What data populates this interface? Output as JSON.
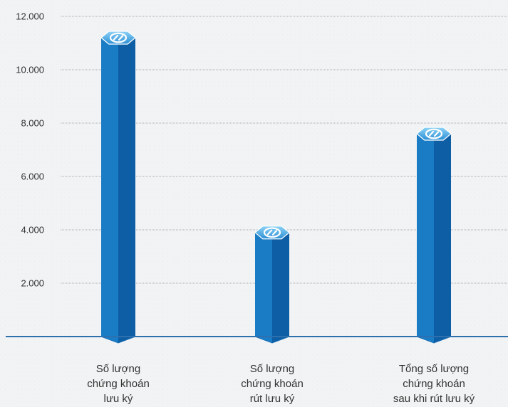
{
  "chart_data": {
    "type": "bar",
    "title": "",
    "xlabel": "",
    "ylabel": "",
    "categories": [
      [
        "Số lượng",
        "chứng khoán",
        "lưu ký"
      ],
      [
        "Số lượng",
        "chứng khoán",
        "rút lưu ký"
      ],
      [
        "Tổng số lượng",
        "chứng khoán",
        "sau khi rút lưu ký"
      ]
    ],
    "values": [
      11200,
      3900,
      7600
    ],
    "ylim": [
      0,
      12000
    ],
    "yticks": [
      2000,
      4000,
      6000,
      8000,
      10000,
      12000
    ],
    "ytick_labels": [
      "2.000",
      "4.000",
      "6.000",
      "8.000",
      "10.000",
      "12.000"
    ],
    "grid": true,
    "legend": "none",
    "colors": {
      "bar_left": "#1b7cc6",
      "bar_right": "#0d5ea4",
      "bar_edge": "#1a6fb6",
      "cap_light": "#6fc3f0",
      "cap_dark": "#2b8fd6",
      "baseline": "#2e6fae",
      "grid": "#a9aeb2",
      "text": "#333333",
      "background": "#f1f3f4"
    }
  }
}
